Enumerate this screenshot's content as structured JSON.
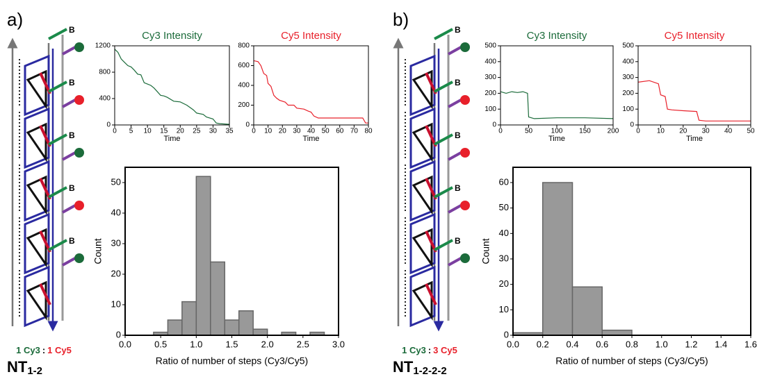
{
  "panels": [
    {
      "label": "a)",
      "construct": "NT",
      "construct_sub": "1-2",
      "ratio_cy3": "1 Cy3",
      "ratio_sep": ":",
      "ratio_cy5": "1 Cy5"
    },
    {
      "label": "b)",
      "construct": "NT",
      "construct_sub": "1-2-2-2",
      "ratio_cy3": "1 Cy3",
      "ratio_sep": ":",
      "ratio_cy5": "3 Cy5"
    }
  ],
  "marker_label": "B",
  "chart_data": [
    {
      "type": "line",
      "title": "Cy3 Intensity",
      "x_label": "Time",
      "color": "#1b6b3a",
      "x": [
        0,
        1,
        2,
        3,
        4,
        5,
        6,
        7,
        8,
        9,
        10,
        11,
        12,
        14,
        15,
        16,
        18,
        20,
        22,
        24,
        25,
        27,
        28,
        30,
        31,
        32,
        35
      ],
      "values": [
        1150,
        1100,
        1000,
        950,
        900,
        880,
        830,
        770,
        760,
        640,
        620,
        600,
        560,
        450,
        440,
        420,
        360,
        350,
        300,
        230,
        180,
        160,
        120,
        90,
        30,
        20,
        10
      ],
      "xlim": [
        0,
        35
      ],
      "xticks": [
        0,
        5,
        10,
        15,
        20,
        25,
        30,
        35
      ],
      "ylim": [
        0,
        1200
      ],
      "yticks": [
        0,
        400,
        800,
        1200
      ]
    },
    {
      "type": "line",
      "title": "Cy5 Intensity",
      "x_label": "Time",
      "color": "#e8202a",
      "x": [
        0,
        3,
        5,
        7,
        9,
        10,
        12,
        14,
        16,
        18,
        22,
        24,
        28,
        30,
        35,
        38,
        40,
        42,
        45,
        50,
        60,
        70,
        76,
        78,
        80
      ],
      "values": [
        650,
        640,
        600,
        520,
        500,
        420,
        390,
        300,
        270,
        250,
        230,
        200,
        200,
        170,
        160,
        140,
        130,
        90,
        70,
        70,
        70,
        70,
        70,
        20,
        20
      ],
      "xlim": [
        0,
        80
      ],
      "xticks": [
        0,
        10,
        20,
        30,
        40,
        50,
        60,
        70,
        80
      ],
      "ylim": [
        0,
        800
      ],
      "yticks": [
        0,
        200,
        400,
        600,
        800
      ]
    },
    {
      "type": "histogram",
      "x_label": "Ratio of number of steps (Cy3/Cy5)",
      "y_label": "Count",
      "color": "#999999",
      "bins": [
        0.4,
        0.6,
        0.8,
        1.0,
        1.2,
        1.4,
        1.6,
        1.8,
        2.0,
        2.2,
        2.4,
        2.6,
        2.8
      ],
      "values": [
        1,
        5,
        11,
        52,
        24,
        5,
        8,
        2,
        0,
        1,
        0,
        1
      ],
      "xlim": [
        0,
        3
      ],
      "xticks": [
        {
          "value": 0,
          "label": "0.0"
        },
        0.5,
        {
          "value": 1,
          "label": "1.0"
        },
        1.5,
        {
          "value": 2,
          "label": "2.0"
        },
        2.5,
        {
          "value": 3,
          "label": "3.0"
        }
      ],
      "ylim": [
        0,
        55
      ],
      "yticks": [
        0,
        10,
        20,
        30,
        40,
        50
      ]
    },
    {
      "type": "line",
      "title": "Cy3 Intensity",
      "x_label": "Time",
      "color": "#1b6b3a",
      "x": [
        0,
        10,
        20,
        30,
        40,
        48,
        50,
        60,
        100,
        150,
        200
      ],
      "values": [
        210,
        200,
        210,
        205,
        210,
        200,
        50,
        40,
        45,
        45,
        40
      ],
      "xlim": [
        0,
        200
      ],
      "xticks": [
        0,
        50,
        100,
        150,
        200
      ],
      "ylim": [
        0,
        500
      ],
      "yticks": [
        0,
        100,
        200,
        300,
        400,
        500
      ]
    },
    {
      "type": "line",
      "title": "Cy5 Intensity",
      "x_label": "Time",
      "color": "#e8202a",
      "x": [
        0,
        5,
        9,
        10,
        12,
        13,
        15,
        20,
        26,
        27,
        30,
        40,
        50
      ],
      "values": [
        270,
        280,
        260,
        190,
        180,
        100,
        95,
        90,
        85,
        30,
        25,
        25,
        25
      ],
      "xlim": [
        0,
        50
      ],
      "xticks": [
        0,
        10,
        20,
        30,
        40,
        50
      ],
      "ylim": [
        0,
        500
      ],
      "yticks": [
        0,
        100,
        200,
        300,
        400,
        500
      ]
    },
    {
      "type": "histogram",
      "x_label": "Ratio of number of steps (Cy3/Cy5)",
      "y_label": "Count",
      "color": "#999999",
      "bins": [
        0,
        0.2,
        0.4,
        0.6,
        0.8
      ],
      "values": [
        1,
        60,
        19,
        2
      ],
      "xlim": [
        0,
        1.6
      ],
      "xticks": [
        {
          "value": 0,
          "label": "0.0"
        },
        0.2,
        0.4,
        0.6,
        0.8,
        {
          "value": 1,
          "label": "1.0"
        },
        1.2,
        1.4,
        1.6
      ],
      "ylim": [
        0,
        66
      ],
      "yticks": [
        0,
        10,
        20,
        30,
        40,
        50,
        60
      ]
    }
  ]
}
